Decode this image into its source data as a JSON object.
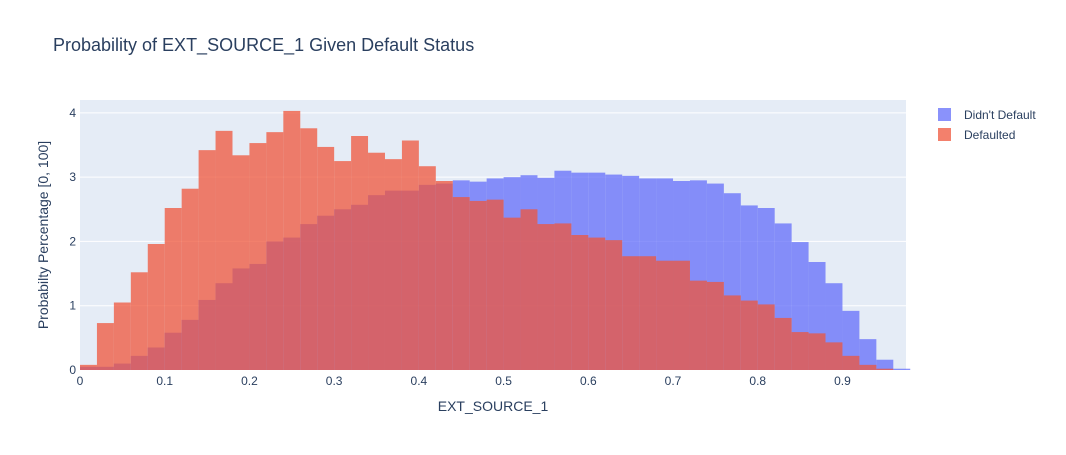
{
  "chart_data": {
    "type": "bar",
    "title": "Probability of EXT_SOURCE_1 Given Default Status",
    "xlabel": "EXT_SOURCE_1",
    "ylabel": "Probabilty Percentage [0, 100]",
    "xlim": [
      0,
      0.975
    ],
    "ylim": [
      0,
      4.2
    ],
    "xticks": [
      0,
      0.1,
      0.2,
      0.3,
      0.4,
      0.5,
      0.6,
      0.7,
      0.8,
      0.9
    ],
    "xtick_labels": [
      "0",
      "0.1",
      "0.2",
      "0.3",
      "0.4",
      "0.5",
      "0.6",
      "0.7",
      "0.8",
      "0.9"
    ],
    "yticks": [
      0,
      1,
      2,
      3,
      4
    ],
    "ytick_labels": [
      "0",
      "1",
      "2",
      "3",
      "4"
    ],
    "bin_width": 0.02,
    "bin_start": 0,
    "grid": true,
    "legend_position": "top-right",
    "series": [
      {
        "name": "Didn't Default",
        "color": "#636efa",
        "values": [
          0.05,
          0.05,
          0.1,
          0.22,
          0.35,
          0.58,
          0.78,
          1.09,
          1.35,
          1.58,
          1.65,
          2.0,
          2.06,
          2.27,
          2.4,
          2.5,
          2.57,
          2.72,
          2.79,
          2.79,
          2.88,
          2.9,
          2.95,
          2.93,
          2.98,
          3.0,
          3.03,
          2.99,
          3.1,
          3.07,
          3.07,
          3.04,
          3.02,
          2.98,
          2.98,
          2.94,
          2.95,
          2.9,
          2.75,
          2.56,
          2.52,
          2.28,
          1.99,
          1.68,
          1.35,
          0.92,
          0.48,
          0.16,
          0.02
        ]
      },
      {
        "name": "Defaulted",
        "color": "#ef553b",
        "values": [
          0.08,
          0.73,
          1.05,
          1.52,
          1.96,
          2.52,
          2.82,
          3.42,
          3.72,
          3.34,
          3.53,
          3.7,
          4.03,
          3.76,
          3.47,
          3.25,
          3.64,
          3.38,
          3.28,
          3.57,
          3.17,
          2.94,
          2.69,
          2.63,
          2.65,
          2.37,
          2.5,
          2.27,
          2.28,
          2.1,
          2.06,
          2.02,
          1.77,
          1.77,
          1.7,
          1.7,
          1.39,
          1.37,
          1.16,
          1.08,
          1.02,
          0.81,
          0.59,
          0.57,
          0.43,
          0.22,
          0.08,
          0.02
        ]
      }
    ]
  }
}
